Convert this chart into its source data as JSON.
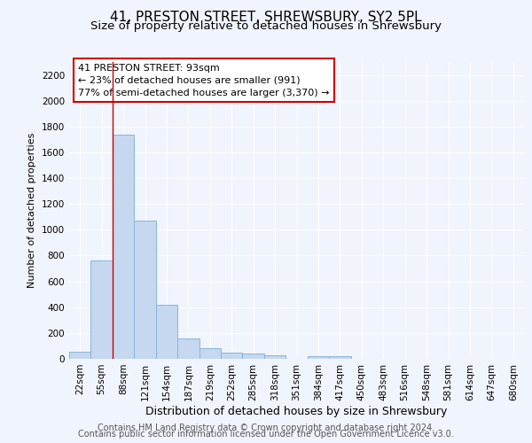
{
  "title1": "41, PRESTON STREET, SHREWSBURY, SY2 5PL",
  "title2": "Size of property relative to detached houses in Shrewsbury",
  "xlabel": "Distribution of detached houses by size in Shrewsbury",
  "ylabel": "Number of detached properties",
  "bar_labels": [
    "22sqm",
    "55sqm",
    "88sqm",
    "121sqm",
    "154sqm",
    "187sqm",
    "219sqm",
    "252sqm",
    "285sqm",
    "318sqm",
    "351sqm",
    "384sqm",
    "417sqm",
    "450sqm",
    "483sqm",
    "516sqm",
    "548sqm",
    "581sqm",
    "614sqm",
    "647sqm",
    "680sqm"
  ],
  "bar_values": [
    55,
    760,
    1740,
    1070,
    420,
    155,
    85,
    50,
    40,
    30,
    0,
    20,
    20,
    0,
    0,
    0,
    0,
    0,
    0,
    0,
    0
  ],
  "bar_color": "#c5d8f0",
  "bar_edgecolor": "#8ab4d9",
  "vline_color": "#cc0000",
  "ylim": [
    0,
    2300
  ],
  "yticks": [
    0,
    200,
    400,
    600,
    800,
    1000,
    1200,
    1400,
    1600,
    1800,
    2000,
    2200
  ],
  "annotation_text": "41 PRESTON STREET: 93sqm\n← 23% of detached houses are smaller (991)\n77% of semi-detached houses are larger (3,370) →",
  "annotation_box_facecolor": "#ffffff",
  "annotation_box_edgecolor": "#cc0000",
  "footer1": "Contains HM Land Registry data © Crown copyright and database right 2024.",
  "footer2": "Contains public sector information licensed under the Open Government Licence v3.0.",
  "background_color": "#f0f4fc",
  "plot_bg_color": "#f0f4fc",
  "grid_color": "#ffffff",
  "title1_fontsize": 11,
  "title2_fontsize": 9.5,
  "xlabel_fontsize": 9,
  "ylabel_fontsize": 8,
  "tick_fontsize": 7.5,
  "annotation_fontsize": 8,
  "footer_fontsize": 7
}
